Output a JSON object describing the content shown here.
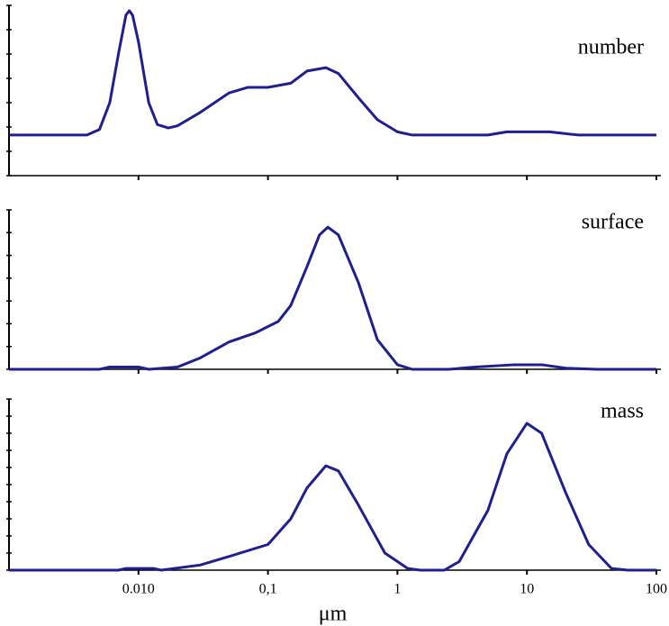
{
  "chart_data": [
    {
      "type": "line",
      "annotation": "number",
      "color": "#1f1f8f",
      "log_x": true,
      "xlim": [
        0.001,
        100
      ],
      "ylim": [
        0,
        7
      ],
      "yticks": [
        0,
        1,
        2,
        3,
        4,
        5,
        6,
        7
      ],
      "series": [
        {
          "x": [
            0.001,
            0.004,
            0.005,
            0.006,
            0.007,
            0.008,
            0.0085,
            0.009,
            0.01,
            0.012,
            0.014,
            0.017,
            0.02,
            0.03,
            0.05,
            0.07,
            0.1,
            0.15,
            0.2,
            0.28,
            0.35,
            0.5,
            0.7,
            1,
            1.3,
            5,
            7,
            15,
            25,
            100
          ],
          "values": [
            1.67,
            1.67,
            1.9,
            3.0,
            5.0,
            6.6,
            6.78,
            6.6,
            5.5,
            3.0,
            2.1,
            1.96,
            2.05,
            2.6,
            3.4,
            3.63,
            3.63,
            3.8,
            4.3,
            4.44,
            4.2,
            3.2,
            2.3,
            1.8,
            1.67,
            1.67,
            1.8,
            1.8,
            1.67,
            1.67
          ]
        }
      ]
    },
    {
      "type": "line",
      "annotation": "surface",
      "color": "#1f1f8f",
      "log_x": true,
      "xlim": [
        0.001,
        100
      ],
      "ylim": [
        0,
        7
      ],
      "yticks": [
        0,
        1,
        2,
        3,
        4,
        5,
        6,
        7
      ],
      "series": [
        {
          "x": [
            0.001,
            0.005,
            0.006,
            0.01,
            0.012,
            0.02,
            0.03,
            0.05,
            0.08,
            0.12,
            0.15,
            0.2,
            0.25,
            0.29,
            0.35,
            0.5,
            0.7,
            1,
            1.3,
            2.5,
            4,
            8,
            13,
            20,
            35,
            100
          ],
          "values": [
            0,
            0,
            0.1,
            0.1,
            0,
            0.1,
            0.5,
            1.2,
            1.6,
            2.1,
            2.8,
            4.5,
            5.9,
            6.24,
            5.9,
            3.8,
            1.3,
            0.2,
            0,
            0,
            0.1,
            0.2,
            0.2,
            0.05,
            0,
            0
          ]
        }
      ]
    },
    {
      "type": "line",
      "annotation": "mass",
      "color": "#1f1f8f",
      "log_x": true,
      "xlim": [
        0.001,
        100
      ],
      "ylim": [
        0,
        10
      ],
      "yticks": [
        0,
        1,
        2,
        3,
        4,
        5,
        6,
        7,
        8,
        9,
        10
      ],
      "xticks": [
        {
          "value": 0.01,
          "label": "0.010"
        },
        {
          "value": 0.1,
          "label": "0,1"
        },
        1,
        10,
        100
      ],
      "xlabel": "μm",
      "series": [
        {
          "x": [
            0.001,
            0.007,
            0.008,
            0.013,
            0.015,
            0.03,
            0.05,
            0.1,
            0.15,
            0.2,
            0.28,
            0.35,
            0.5,
            0.8,
            1.2,
            1.5,
            2.3,
            3,
            5,
            7,
            10,
            13,
            20,
            30,
            45,
            60,
            100
          ],
          "values": [
            0,
            0,
            0.1,
            0.1,
            0,
            0.3,
            0.8,
            1.5,
            3.0,
            4.8,
            6.1,
            5.8,
            3.8,
            1.0,
            0.1,
            0,
            0,
            0.5,
            3.5,
            6.8,
            8.58,
            8.0,
            4.5,
            1.5,
            0.1,
            0,
            0
          ]
        }
      ]
    }
  ]
}
